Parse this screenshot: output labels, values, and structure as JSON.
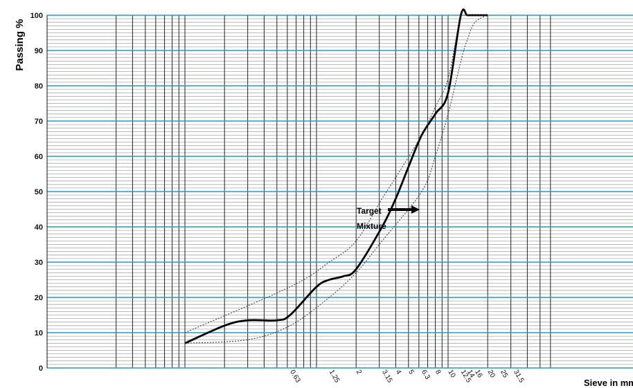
{
  "chart_data": {
    "type": "line",
    "ylabel": "Passing %",
    "xlabel": "Sieve in mm",
    "x_scale": "log",
    "ylim": [
      0,
      100
    ],
    "y_ticks": [
      0,
      10,
      20,
      30,
      40,
      50,
      60,
      70,
      80,
      90,
      100
    ],
    "x_tick_labels": [
      "0.63",
      "1.25",
      "2",
      "3.15",
      "4",
      "5",
      "6.3",
      "8",
      "10",
      "12.5",
      "14",
      "16",
      "20",
      "25",
      "31.5"
    ],
    "grid": true,
    "annotation": {
      "line1": "Target",
      "line2": "Mixture"
    },
    "series": [
      {
        "style": "solid",
        "x": [
          0.1,
          0.2,
          0.3,
          0.5,
          0.63,
          1.0,
          1.25,
          1.6,
          2.0,
          3.15,
          4.0,
          5.0,
          6.3,
          8.0,
          10.0,
          12.5,
          14.0,
          16.0,
          20.0
        ],
        "y": [
          7,
          12,
          13.5,
          13.5,
          15,
          23,
          25,
          26,
          28,
          40,
          48,
          57,
          66,
          72,
          78,
          100,
          100,
          100,
          100
        ]
      },
      {
        "style": "dotted",
        "x": [
          0.1,
          0.63,
          1.25,
          2.0,
          3.15,
          4.0,
          6.3,
          8.0,
          10.0,
          12.5,
          14.0,
          16.0,
          20.0
        ],
        "y": [
          10,
          23,
          30,
          36,
          48,
          54,
          66,
          74,
          82,
          100,
          100,
          100,
          100
        ]
      },
      {
        "style": "dotted",
        "x": [
          0.1,
          0.3,
          0.63,
          1.25,
          2.0,
          3.15,
          6.3,
          8.0,
          10.0,
          12.5,
          14.0,
          16.0,
          20.0
        ],
        "y": [
          7,
          8,
          12,
          20,
          27,
          36,
          50,
          60,
          72,
          87,
          93,
          98,
          100
        ]
      }
    ]
  }
}
